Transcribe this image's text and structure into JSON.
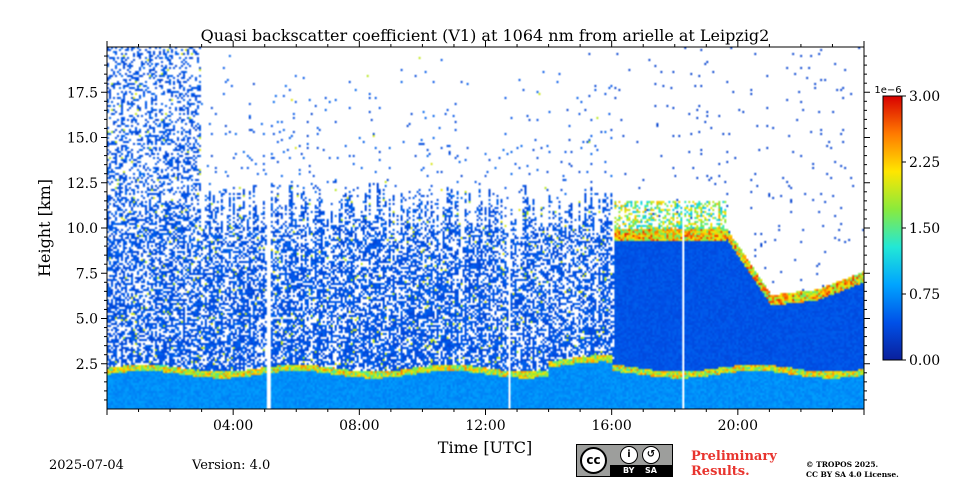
{
  "chart_data": {
    "type": "heatmap",
    "title": "Quasi backscatter coefficient (V1) at 1064 nm from arielle at Leipzig2",
    "xlabel": "Time [UTC]",
    "ylabel": "Height [km]",
    "xlim_hours": [
      0,
      24
    ],
    "ylim_km": [
      0,
      20
    ],
    "x_ticks": [
      {
        "hour": 4,
        "label": "04:00"
      },
      {
        "hour": 8,
        "label": "08:00"
      },
      {
        "hour": 12,
        "label": "12:00"
      },
      {
        "hour": 16,
        "label": "16:00"
      },
      {
        "hour": 20,
        "label": "20:00"
      }
    ],
    "y_ticks": [
      {
        "km": 2.5,
        "label": "2.5"
      },
      {
        "km": 5.0,
        "label": "5.0"
      },
      {
        "km": 7.5,
        "label": "7.5"
      },
      {
        "km": 10.0,
        "label": "10.0"
      },
      {
        "km": 12.5,
        "label": "12.5"
      },
      {
        "km": 15.0,
        "label": "15.0"
      },
      {
        "km": 17.5,
        "label": "17.5"
      }
    ],
    "colorbar": {
      "multiplier": "1e−6",
      "range": [
        0,
        3.0
      ],
      "ticks": [
        {
          "value": 0.0,
          "label": "0.00"
        },
        {
          "value": 0.75,
          "label": "0.75"
        },
        {
          "value": 1.5,
          "label": "1.50"
        },
        {
          "value": 2.25,
          "label": "2.25"
        },
        {
          "value": 3.0,
          "label": "3.00"
        }
      ],
      "colormap": "jet",
      "colors": [
        "#0a1f9c",
        "#0051e8",
        "#00a4ff",
        "#22e8d6",
        "#8aea3c",
        "#ffe600",
        "#ff7a00",
        "#d80000"
      ]
    },
    "data_gaps_hours": [
      [
        5.05,
        5.2
      ],
      [
        12.7,
        12.82
      ],
      [
        18.22,
        18.33
      ]
    ],
    "features": [
      {
        "name": "boundary layer",
        "time_hours": [
          0,
          24
        ],
        "top_km": [
          1.8,
          2.5
        ]
      },
      {
        "name": "cirrus cloud",
        "time_hours": [
          16.1,
          19.6
        ],
        "base_km": 9.3,
        "top_km": 11.5
      },
      {
        "name": "cloud base",
        "time_hours": [
          19.6,
          24
        ],
        "height_km": [
          9.5,
          5.7,
          6.0,
          7.0
        ]
      }
    ]
  },
  "footer": {
    "date": "2025-07-04",
    "version": "Version: 4.0",
    "preliminary_line1": "Preliminary",
    "preliminary_line2": "Results.",
    "copyright_line1": "© TROPOS 2025.",
    "copyright_line2": "CC BY SA 4.0 License.",
    "license_badge": {
      "cc": "cc",
      "by": "BY",
      "sa": "SA"
    }
  }
}
